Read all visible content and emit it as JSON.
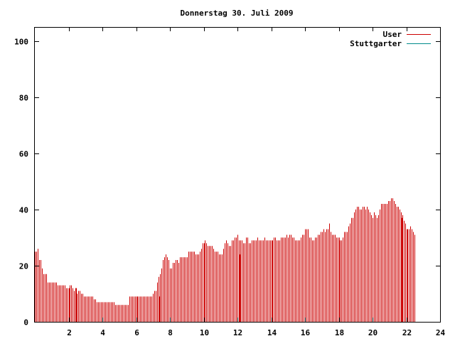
{
  "chart_data": {
    "type": "bar",
    "title": "Donnerstag 30. Juli 2009",
    "xlabel": "",
    "ylabel": "",
    "xlim": [
      0,
      24
    ],
    "ylim": [
      0,
      105
    ],
    "x_ticks": [
      2,
      4,
      6,
      8,
      10,
      12,
      14,
      16,
      18,
      20,
      22,
      24
    ],
    "x_tick_labels": [
      "2",
      "4",
      "6",
      "8",
      "10",
      "12",
      "14",
      "16",
      "18",
      "20",
      "22",
      "24"
    ],
    "y_ticks": [
      0,
      20,
      40,
      60,
      80,
      100
    ],
    "y_tick_labels": [
      "0",
      "20",
      "40",
      "60",
      "80",
      "100"
    ],
    "grid": false,
    "legend_position": "top-right",
    "series": [
      {
        "name": "User",
        "color": "#cc0000",
        "x_step_minutes": 5,
        "x_start_hour": 0,
        "values": [
          25,
          25,
          26,
          22,
          22,
          19,
          17,
          17,
          17,
          14,
          14,
          14,
          14,
          14,
          14,
          14,
          13,
          13,
          13,
          13,
          13,
          13,
          12,
          12,
          12,
          13,
          13,
          12,
          11,
          11,
          10,
          11,
          11,
          10,
          10,
          9,
          9,
          9,
          9,
          9,
          9,
          9,
          8,
          8,
          7,
          7,
          7,
          7,
          7,
          7,
          7,
          7,
          7,
          7,
          7,
          7,
          7,
          6,
          6,
          6,
          6,
          6,
          6,
          6,
          6,
          6,
          6,
          9,
          9,
          9,
          9,
          9,
          9,
          9,
          9,
          9,
          9,
          9,
          9,
          9,
          9,
          9,
          9,
          9,
          10,
          11,
          11,
          14,
          16,
          17,
          19,
          22,
          23,
          24,
          23,
          22,
          19,
          19,
          21,
          21,
          22,
          22,
          21,
          23,
          23,
          23,
          23,
          23,
          23,
          25,
          25,
          25,
          25,
          25,
          24,
          24,
          24,
          25,
          26,
          28,
          28,
          29,
          28,
          27,
          27,
          27,
          27,
          26,
          25,
          25,
          25,
          24,
          24,
          24,
          26,
          28,
          29,
          28,
          27,
          27,
          29,
          29,
          30,
          30,
          31,
          29,
          29,
          29,
          28,
          28,
          30,
          30,
          28,
          28,
          29,
          29,
          29,
          29,
          30,
          29,
          29,
          29,
          29,
          30,
          29,
          29,
          29,
          29,
          29,
          29,
          30,
          30,
          29,
          29,
          29,
          30,
          30,
          30,
          30,
          31,
          30,
          31,
          31,
          30,
          30,
          29,
          29,
          29,
          29,
          30,
          31,
          31,
          33,
          33,
          33,
          30,
          30,
          29,
          29,
          30,
          30,
          31,
          31,
          32,
          32,
          33,
          32,
          33,
          33,
          35,
          32,
          31,
          31,
          31,
          30,
          30,
          30,
          29,
          29,
          30,
          32,
          32,
          32,
          34,
          35,
          37,
          37,
          39,
          40,
          41,
          41,
          40,
          40,
          41,
          41,
          40,
          41,
          40,
          39,
          38,
          37,
          39,
          38,
          37,
          38,
          40,
          42,
          42,
          42,
          42,
          42,
          43,
          43,
          44,
          44,
          43,
          42,
          41,
          41,
          40,
          39,
          38,
          36,
          35,
          33,
          33,
          33,
          34,
          33,
          32,
          31
        ]
      },
      {
        "name": "Stuttgarter",
        "color": "#008b8b",
        "values": []
      }
    ],
    "highlight_bars": [
      {
        "x": 2.42,
        "value": 12
      },
      {
        "x": 7.33,
        "value": 9
      },
      {
        "x": 12.08,
        "value": 24
      },
      {
        "x": 21.67,
        "value": 37
      }
    ]
  }
}
